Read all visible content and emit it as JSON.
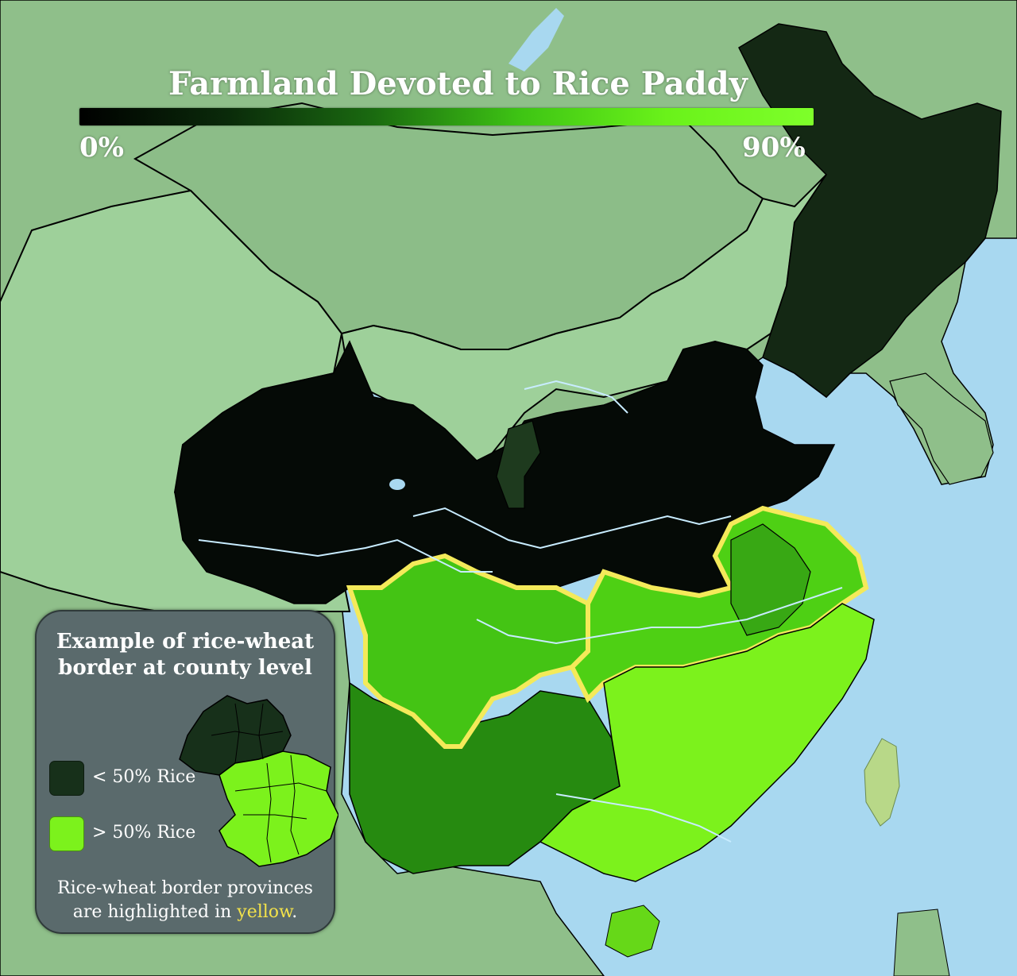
{
  "title": "Farmland Devoted to Rice Paddy",
  "scale": {
    "min_label": "0%",
    "max_label": "90%",
    "min_value": 0,
    "max_value": 90,
    "unit": "%",
    "colors": [
      "#000000",
      "#0a2a0a",
      "#1a6a10",
      "#3ec414",
      "#6af21a",
      "#7eff2a"
    ]
  },
  "legend": {
    "title_line1": "Example of rice-wheat",
    "title_line2": "border at county level",
    "items": [
      {
        "label": "< 50% Rice",
        "color": "#17301a"
      },
      {
        "label": "> 50% Rice",
        "color": "#7cf21c"
      }
    ],
    "note_line1": "Rice-wheat border provinces",
    "note_line2_prefix": "are highlighted in ",
    "note_highlight": "yellow",
    "note_suffix": ".",
    "highlight_color": "#f3e24a"
  },
  "colors": {
    "sea": "#a8d8f0",
    "foreign_land": "#8fbf8a",
    "non_farm_land": "#9ed09a",
    "river": "#c8ecff",
    "border_line": "#000000",
    "rice_border_glow": "#f4ea5a"
  }
}
